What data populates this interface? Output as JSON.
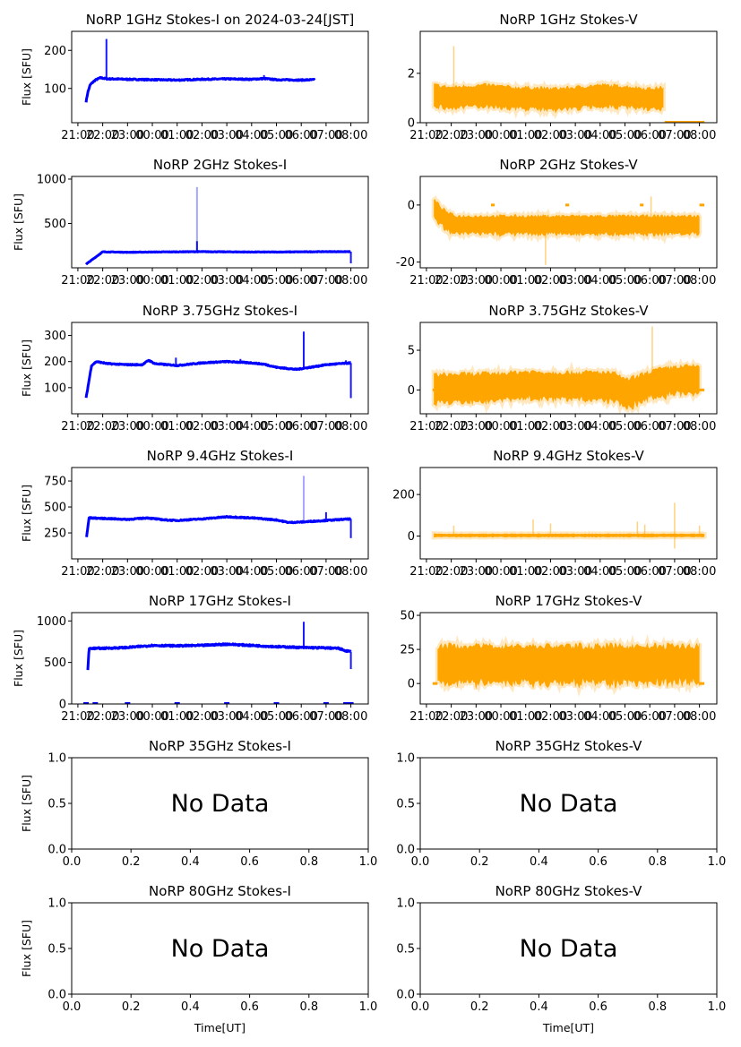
{
  "figure": {
    "date_label": "2024-03-24[JST]",
    "ylabel": "Flux [SFU]",
    "xlabel": "Time[UT]",
    "no_data_text": "No Data",
    "colors": {
      "stokes_i": "#0000ff",
      "stokes_v": "#ffa500",
      "axis": "#000000"
    }
  },
  "chart_data": [
    {
      "id": "1ghz-i",
      "type": "scatter",
      "title": "NoRP 1GHz Stokes-I on 2024-03-24[JST]",
      "ylabel": "Flux [SFU]",
      "ylim": [
        10,
        250
      ],
      "yticks": [
        100,
        200
      ],
      "xticks": [
        "21:00",
        "22:00",
        "23:00",
        "00:00",
        "01:00",
        "02:00",
        "03:00",
        "04:00",
        "05:00",
        "06:00",
        "07:00",
        "08:00"
      ],
      "xlim_hours": [
        -0.25,
        11.7
      ],
      "series": {
        "name": "Stokes-I",
        "color": "#0000ff",
        "kind": "line",
        "points": [
          [
            0.33,
            65
          ],
          [
            0.4,
            90
          ],
          [
            0.5,
            110
          ],
          [
            0.7,
            122
          ],
          [
            0.9,
            128
          ],
          [
            1.2,
            125
          ],
          [
            1.5,
            125
          ],
          [
            2,
            124
          ],
          [
            3,
            123
          ],
          [
            4,
            122
          ],
          [
            5,
            124
          ],
          [
            6,
            125
          ],
          [
            7,
            124
          ],
          [
            7.5,
            126
          ],
          [
            8,
            123
          ],
          [
            9,
            122
          ],
          [
            9.55,
            123
          ]
        ],
        "spikes": [
          [
            1.15,
            230
          ],
          [
            7.5,
            135
          ]
        ],
        "noise": 3
      }
    },
    {
      "id": "1ghz-v",
      "type": "scatter",
      "title": "NoRP 1GHz Stokes-V",
      "ylabel": "",
      "ylim": [
        0,
        3.7
      ],
      "yticks": [
        0,
        2
      ],
      "xticks": [
        "21:00",
        "22:00",
        "23:00",
        "00:00",
        "01:00",
        "02:00",
        "03:00",
        "04:00",
        "05:00",
        "06:00",
        "07:00",
        "08:00"
      ],
      "xlim_hours": [
        -0.25,
        11.7
      ],
      "series": {
        "name": "Stokes-V",
        "color": "#ffa500",
        "kind": "band",
        "points": [
          [
            0.3,
            1.1
          ],
          [
            1,
            1.0
          ],
          [
            1.5,
            1.05
          ],
          [
            2.5,
            1.1
          ],
          [
            3.5,
            1.0
          ],
          [
            4,
            1.0
          ],
          [
            5,
            0.95
          ],
          [
            6,
            1.0
          ],
          [
            7,
            1.1
          ],
          [
            8,
            1.05
          ],
          [
            9,
            0.95
          ],
          [
            9.55,
            1.0
          ]
        ],
        "halfwidth": 0.45,
        "spikes": [
          [
            1.1,
            3.1
          ]
        ],
        "flat": [
          [
            9.6,
            11.2,
            0.02
          ]
        ]
      }
    },
    {
      "id": "2ghz-i",
      "type": "scatter",
      "title": "NoRP 2GHz Stokes-I",
      "ylabel": "Flux [SFU]",
      "ylim": [
        0,
        1030
      ],
      "yticks": [
        500,
        1000
      ],
      "xticks": [
        "21:00",
        "22:00",
        "23:00",
        "00:00",
        "01:00",
        "02:00",
        "03:00",
        "04:00",
        "05:00",
        "06:00",
        "07:00",
        "08:00"
      ],
      "xlim_hours": [
        -0.25,
        11.7
      ],
      "series": {
        "name": "Stokes-I",
        "color": "#0000ff",
        "kind": "line",
        "points": [
          [
            0.33,
            40
          ],
          [
            1,
            180
          ],
          [
            2,
            175
          ],
          [
            3,
            178
          ],
          [
            4,
            180
          ],
          [
            5,
            182
          ],
          [
            6,
            180
          ],
          [
            7,
            178
          ],
          [
            8,
            178
          ],
          [
            9,
            180
          ],
          [
            10,
            182
          ],
          [
            11,
            182
          ]
        ],
        "spikes": [
          [
            4.8,
            910
          ],
          [
            4.8,
            300
          ],
          [
            11,
            50
          ]
        ],
        "noise": 6
      }
    },
    {
      "id": "2ghz-v",
      "type": "scatter",
      "title": "NoRP 2GHz Stokes-V",
      "ylabel": "",
      "ylim": [
        -22,
        10
      ],
      "yticks": [
        -20,
        0
      ],
      "xticks": [
        "21:00",
        "22:00",
        "23:00",
        "00:00",
        "01:00",
        "02:00",
        "03:00",
        "04:00",
        "05:00",
        "06:00",
        "07:00",
        "08:00"
      ],
      "xlim_hours": [
        -0.25,
        11.7
      ],
      "series": {
        "name": "Stokes-V",
        "color": "#ffa500",
        "kind": "band",
        "points": [
          [
            0.3,
            -1
          ],
          [
            0.6,
            -4
          ],
          [
            0.9,
            -6
          ],
          [
            1.2,
            -7
          ],
          [
            3,
            -7
          ],
          [
            6,
            -7
          ],
          [
            9,
            -7
          ],
          [
            11,
            -7
          ]
        ],
        "halfwidth": 3.3,
        "spikes": [
          [
            4.8,
            -21
          ],
          [
            9.05,
            3
          ]
        ],
        "flat": [
          [
            2.6,
            2.75,
            0
          ],
          [
            5.6,
            5.75,
            0
          ],
          [
            8.6,
            8.75,
            0
          ],
          [
            11,
            11.2,
            0
          ]
        ]
      }
    },
    {
      "id": "3.75ghz-i",
      "type": "scatter",
      "title": "NoRP 3.75GHz Stokes-I",
      "ylabel": "Flux [SFU]",
      "ylim": [
        0,
        350
      ],
      "yticks": [
        100,
        200,
        300
      ],
      "xticks": [
        "21:00",
        "22:00",
        "23:00",
        "00:00",
        "01:00",
        "02:00",
        "03:00",
        "04:00",
        "05:00",
        "06:00",
        "07:00",
        "08:00"
      ],
      "xlim_hours": [
        -0.25,
        11.7
      ],
      "series": {
        "name": "Stokes-I",
        "color": "#0000ff",
        "kind": "line",
        "points": [
          [
            0.33,
            60
          ],
          [
            0.55,
            185
          ],
          [
            0.75,
            200
          ],
          [
            1.2,
            192
          ],
          [
            2,
            188
          ],
          [
            2.6,
            188
          ],
          [
            2.85,
            205
          ],
          [
            3.1,
            192
          ],
          [
            4,
            185
          ],
          [
            5,
            195
          ],
          [
            6,
            200
          ],
          [
            7,
            195
          ],
          [
            7.5,
            190
          ],
          [
            8,
            178
          ],
          [
            8.8,
            170
          ],
          [
            9.5,
            180
          ],
          [
            10,
            188
          ],
          [
            11,
            195
          ]
        ],
        "spikes": [
          [
            3.95,
            215
          ],
          [
            6.55,
            210
          ],
          [
            9.1,
            315
          ],
          [
            10.8,
            205
          ],
          [
            11,
            60
          ]
        ],
        "noise": 4
      }
    },
    {
      "id": "3.75ghz-v",
      "type": "scatter",
      "title": "NoRP 3.75GHz Stokes-V",
      "ylabel": "",
      "ylim": [
        -3,
        8.5
      ],
      "yticks": [
        0,
        5
      ],
      "xticks": [
        "21:00",
        "22:00",
        "23:00",
        "00:00",
        "01:00",
        "02:00",
        "03:00",
        "04:00",
        "05:00",
        "06:00",
        "07:00",
        "08:00"
      ],
      "xlim_hours": [
        -0.25,
        11.7
      ],
      "series": {
        "name": "Stokes-V",
        "color": "#ffa500",
        "kind": "band",
        "points": [
          [
            0.3,
            0.2
          ],
          [
            2,
            0.3
          ],
          [
            3,
            0.4
          ],
          [
            4,
            0.6
          ],
          [
            5,
            0.5
          ],
          [
            6,
            0.5
          ],
          [
            7,
            0.5
          ],
          [
            7.7,
            0.3
          ],
          [
            8,
            -0.5
          ],
          [
            8.5,
            0
          ],
          [
            9.1,
            0.7
          ],
          [
            10,
            1.2
          ],
          [
            11,
            1.3
          ]
        ],
        "halfwidth": 1.8,
        "spikes": [
          [
            9.1,
            8
          ]
        ],
        "flat": [
          [
            0.25,
            0.35,
            0
          ],
          [
            11,
            11.2,
            0
          ]
        ]
      }
    },
    {
      "id": "9.4ghz-i",
      "type": "scatter",
      "title": "NoRP 9.4GHz Stokes-I",
      "ylabel": "Flux [SFU]",
      "ylim": [
        0,
        880
      ],
      "yticks": [
        250,
        500,
        750
      ],
      "xticks": [
        "21:00",
        "22:00",
        "23:00",
        "00:00",
        "01:00",
        "02:00",
        "03:00",
        "04:00",
        "05:00",
        "06:00",
        "07:00",
        "08:00"
      ],
      "xlim_hours": [
        -0.25,
        11.7
      ],
      "series": {
        "name": "Stokes-I",
        "color": "#0000ff",
        "kind": "line",
        "points": [
          [
            0.35,
            210
          ],
          [
            0.45,
            395
          ],
          [
            1,
            390
          ],
          [
            2,
            380
          ],
          [
            2.8,
            395
          ],
          [
            3.5,
            375
          ],
          [
            4,
            370
          ],
          [
            5,
            385
          ],
          [
            6,
            405
          ],
          [
            7,
            395
          ],
          [
            8,
            375
          ],
          [
            8.5,
            350
          ],
          [
            9,
            355
          ],
          [
            10,
            370
          ],
          [
            11,
            385
          ]
        ],
        "spikes": [
          [
            9.1,
            800
          ],
          [
            10,
            450
          ],
          [
            11,
            200
          ]
        ],
        "noise": 10
      }
    },
    {
      "id": "9.4ghz-v",
      "type": "scatter",
      "title": "NoRP 9.4GHz Stokes-V",
      "ylabel": "",
      "ylim": [
        -110,
        330
      ],
      "yticks": [
        0,
        200
      ],
      "xticks": [
        "21:00",
        "22:00",
        "23:00",
        "00:00",
        "01:00",
        "02:00",
        "03:00",
        "04:00",
        "05:00",
        "06:00",
        "07:00",
        "08:00"
      ],
      "xlim_hours": [
        -0.25,
        11.7
      ],
      "series": {
        "name": "Stokes-V",
        "color": "#ffa500",
        "kind": "band",
        "points": [
          [
            0.3,
            3
          ],
          [
            11.2,
            3
          ]
        ],
        "halfwidth": 8,
        "spikes": [
          [
            1.1,
            50
          ],
          [
            4.3,
            80
          ],
          [
            5,
            60
          ],
          [
            8.5,
            70
          ],
          [
            8.8,
            55
          ],
          [
            10,
            160
          ],
          [
            10,
            -60
          ],
          [
            11,
            50
          ]
        ],
        "flat": []
      }
    },
    {
      "id": "17ghz-i",
      "type": "scatter",
      "title": "NoRP 17GHz Stokes-I",
      "ylabel": "Flux [SFU]",
      "ylim": [
        0,
        1100
      ],
      "yticks": [
        0,
        500,
        1000
      ],
      "xticks": [
        "21:00",
        "22:00",
        "23:00",
        "00:00",
        "01:00",
        "02:00",
        "03:00",
        "04:00",
        "05:00",
        "06:00",
        "07:00",
        "08:00"
      ],
      "xlim_hours": [
        -0.25,
        11.7
      ],
      "series": {
        "name": "Stokes-I",
        "color": "#0000ff",
        "kind": "line",
        "points": [
          [
            0.4,
            400
          ],
          [
            0.45,
            670
          ],
          [
            1,
            670
          ],
          [
            2,
            680
          ],
          [
            3,
            705
          ],
          [
            4,
            700
          ],
          [
            5,
            705
          ],
          [
            6,
            720
          ],
          [
            7,
            705
          ],
          [
            8,
            690
          ],
          [
            9,
            680
          ],
          [
            10,
            675
          ],
          [
            10.5,
            670
          ],
          [
            10.8,
            640
          ],
          [
            11,
            630
          ]
        ],
        "spikes": [
          [
            9.1,
            990
          ],
          [
            11,
            420
          ]
        ],
        "noise": 18,
        "baseline_dots": [
          0.33,
          0.7,
          2,
          4,
          6,
          8,
          10,
          10.8,
          11
        ]
      }
    },
    {
      "id": "17ghz-v",
      "type": "scatter",
      "title": "NoRP 17GHz Stokes-V",
      "ylabel": "",
      "ylim": [
        -15,
        52
      ],
      "yticks": [
        0,
        25,
        50
      ],
      "xticks": [
        "21:00",
        "22:00",
        "23:00",
        "00:00",
        "01:00",
        "02:00",
        "03:00",
        "04:00",
        "05:00",
        "06:00",
        "07:00",
        "08:00"
      ],
      "xlim_hours": [
        -0.25,
        11.7
      ],
      "series": {
        "name": "Stokes-V",
        "color": "#ffa500",
        "kind": "band",
        "points": [
          [
            0.45,
            14
          ],
          [
            11,
            14
          ]
        ],
        "halfwidth": 14,
        "spikes": [],
        "flat": [
          [
            0.25,
            0.45,
            0
          ],
          [
            11,
            11.2,
            0
          ]
        ]
      }
    },
    {
      "id": "35ghz-i",
      "type": "empty",
      "title": "NoRP 35GHz Stokes-I",
      "ylabel": "Flux [SFU]",
      "ylim": [
        0,
        1
      ],
      "yticks": [
        "0.0",
        "0.5",
        "1.0"
      ],
      "xlim": [
        0,
        1
      ],
      "xticks": [
        "0.0",
        "0.2",
        "0.4",
        "0.6",
        "0.8",
        "1.0"
      ],
      "annotation": "No Data"
    },
    {
      "id": "35ghz-v",
      "type": "empty",
      "title": "NoRP 35GHz Stokes-V",
      "ylabel": "",
      "ylim": [
        0,
        1
      ],
      "yticks": [
        "0.0",
        "0.5",
        "1.0"
      ],
      "xlim": [
        0,
        1
      ],
      "xticks": [
        "0.0",
        "0.2",
        "0.4",
        "0.6",
        "0.8",
        "1.0"
      ],
      "annotation": "No Data"
    },
    {
      "id": "80ghz-i",
      "type": "empty",
      "title": "NoRP 80GHz Stokes-I",
      "ylabel": "Flux [SFU]",
      "xlabel": "Time[UT]",
      "ylim": [
        0,
        1
      ],
      "yticks": [
        "0.0",
        "0.5",
        "1.0"
      ],
      "xlim": [
        0,
        1
      ],
      "xticks": [
        "0.0",
        "0.2",
        "0.4",
        "0.6",
        "0.8",
        "1.0"
      ],
      "annotation": "No Data"
    },
    {
      "id": "80ghz-v",
      "type": "empty",
      "title": "NoRP 80GHz Stokes-V",
      "ylabel": "",
      "xlabel": "Time[UT]",
      "ylim": [
        0,
        1
      ],
      "yticks": [
        "0.0",
        "0.5",
        "1.0"
      ],
      "xlim": [
        0,
        1
      ],
      "xticks": [
        "0.0",
        "0.2",
        "0.4",
        "0.6",
        "0.8",
        "1.0"
      ],
      "annotation": "No Data"
    }
  ]
}
